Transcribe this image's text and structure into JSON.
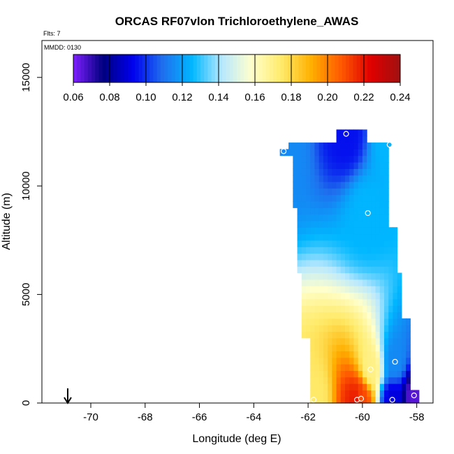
{
  "chart_data": {
    "type": "heatmap",
    "title": "ORCAS RF07vlon Trichloroethylene_AWAS",
    "flights_label": "Flts: 7",
    "date_label": "MMDD: 0130",
    "xlabel": "Longitude (deg E)",
    "ylabel": "Altitude (m)",
    "xlim": [
      -71.8,
      -57.4
    ],
    "ylim": [
      0,
      16700
    ],
    "xticks": [
      -70,
      -68,
      -66,
      -64,
      -62,
      -60,
      -58
    ],
    "xtick_labels": [
      "-70",
      "-68",
      "-66",
      "-64",
      "-62",
      "-60",
      "-58"
    ],
    "yticks": [
      0,
      5000,
      10000,
      15000
    ],
    "ytick_labels": [
      "0",
      "5000",
      "10000",
      "15000"
    ],
    "colorbar": {
      "min": 0.06,
      "max": 0.24,
      "ticks": [
        0.06,
        0.08,
        0.1,
        0.12,
        0.14,
        0.16,
        0.18,
        0.2,
        0.22,
        0.24
      ],
      "tick_labels": [
        "0.06",
        "0.08",
        "0.10",
        "0.12",
        "0.14",
        "0.16",
        "0.18",
        "0.20",
        "0.22",
        "0.24"
      ],
      "colors": [
        "#7f1fff",
        "#00007f",
        "#0000ee",
        "#1f6fee",
        "#00b7ff",
        "#b8e8ff",
        "#ffffcc",
        "#ffeb6b",
        "#ffb000",
        "#ff5a00",
        "#e00000",
        "#a01010"
      ]
    },
    "points": [
      {
        "lon": -62.9,
        "alt": 11600,
        "value": 0.115
      },
      {
        "lon": -60.6,
        "alt": 12400,
        "value": 0.095
      },
      {
        "lon": -59.0,
        "alt": 11900,
        "value": 0.125
      },
      {
        "lon": -59.8,
        "alt": 8750,
        "value": 0.125
      },
      {
        "lon": -59.7,
        "alt": 1550,
        "value": 0.17
      },
      {
        "lon": -58.8,
        "alt": 1900,
        "value": 0.115
      },
      {
        "lon": -61.8,
        "alt": 150,
        "value": 0.175
      },
      {
        "lon": -60.2,
        "alt": 150,
        "value": 0.22
      },
      {
        "lon": -60.05,
        "alt": 200,
        "value": 0.21
      },
      {
        "lon": -58.9,
        "alt": 150,
        "value": 0.09
      },
      {
        "lon": -58.1,
        "alt": 350,
        "value": 0.065
      }
    ],
    "arrow_marker_lon": -70.85
  }
}
